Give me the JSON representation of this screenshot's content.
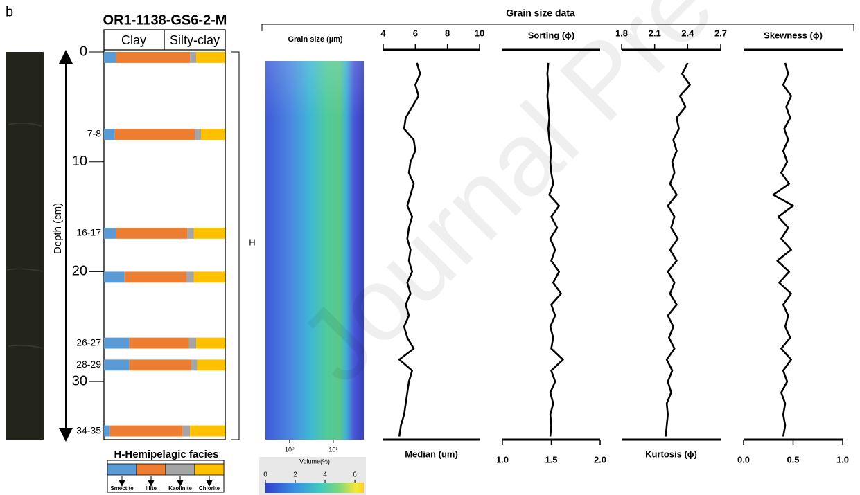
{
  "panel_label": "b",
  "watermark": "Journal Pre-proof",
  "core": {
    "title": "OR1-1138-GS6-2-M",
    "columns": [
      "Clay",
      "Silty-clay"
    ],
    "depth_label": "Depth (cm)",
    "ylim": [
      0,
      35
    ],
    "yticks": [
      0,
      10,
      20,
      30
    ],
    "facies_mark": "H",
    "minerals": [
      {
        "name": "Smectite",
        "color": "#5b9bd5"
      },
      {
        "name": "Illite",
        "color": "#ed7d31"
      },
      {
        "name": "Kaolinite",
        "color": "#a5a5a5"
      },
      {
        "name": "Chlorite",
        "color": "#ffc000"
      }
    ],
    "legend_title": "H-Hemipelagic facies",
    "samples": [
      {
        "label": null,
        "depth": [
          0,
          1
        ],
        "values": [
          10,
          61,
          5,
          24
        ]
      },
      {
        "label": "7-8",
        "depth": [
          7,
          8
        ],
        "values": [
          9,
          66,
          5,
          20
        ]
      },
      {
        "label": "16-17",
        "depth": [
          16,
          17
        ],
        "values": [
          10,
          59,
          5,
          26
        ]
      },
      {
        "label": null,
        "depth": [
          20,
          21
        ],
        "values": [
          17,
          51,
          6,
          26
        ]
      },
      {
        "label": "26-27",
        "depth": [
          26,
          27
        ],
        "values": [
          21,
          49,
          6,
          24
        ]
      },
      {
        "label": "28-29",
        "depth": [
          28,
          29
        ],
        "values": [
          21,
          51,
          5,
          23
        ]
      },
      {
        "label": "34-35",
        "depth": [
          34,
          35
        ],
        "values": [
          5,
          60,
          6,
          29
        ]
      }
    ]
  },
  "heatmap": {
    "title": "Grain size (µm)",
    "log_x": true,
    "xlim": [
      0.28,
      50
    ],
    "xticks": [
      {
        "value": 1,
        "label": "10⁰"
      },
      {
        "value": 10,
        "label": "10¹"
      }
    ],
    "colorbar_label": "Volume(%)",
    "colorbar_lim": [
      0,
      6.6
    ],
    "colorbar_ticks": [
      0,
      2,
      4,
      6
    ]
  },
  "profiles": {
    "title": "Grain size data",
    "depths": [
      1,
      2,
      3,
      4,
      5,
      6,
      7,
      8,
      9,
      10,
      11,
      12,
      13,
      14,
      15,
      16,
      17,
      18,
      19,
      20,
      21,
      22,
      23,
      24,
      25,
      26,
      27,
      28,
      29,
      30,
      31,
      32,
      33,
      34,
      35
    ],
    "panels": [
      {
        "name": "Median (um)",
        "axis_side": "top",
        "xlim": [
          4,
          10
        ],
        "xticks": [
          4,
          6,
          8,
          10
        ],
        "values": [
          6.1,
          6.3,
          6.0,
          6.2,
          5.8,
          5.4,
          5.3,
          5.9,
          6.0,
          5.7,
          5.6,
          5.9,
          5.7,
          5.5,
          5.8,
          5.6,
          5.5,
          5.7,
          5.6,
          5.8,
          5.5,
          5.7,
          5.4,
          5.6,
          5.3,
          5.5,
          5.9,
          5.0,
          5.8,
          5.6,
          5.5,
          5.4,
          5.3,
          5.1,
          5.0
        ]
      },
      {
        "name": "Sorting (ϕ)",
        "axis_side": "bottom",
        "xlim": [
          1,
          2
        ],
        "xticks": [
          {
            "value": 1,
            "label": "1.0"
          },
          1.5,
          {
            "value": 2,
            "label": "2.0"
          }
        ],
        "values": [
          1.47,
          1.46,
          1.47,
          1.46,
          1.47,
          1.48,
          1.47,
          1.48,
          1.5,
          1.49,
          1.5,
          1.52,
          1.48,
          1.58,
          1.5,
          1.56,
          1.49,
          1.54,
          1.5,
          1.58,
          1.52,
          1.6,
          1.5,
          1.54,
          1.49,
          1.52,
          1.5,
          1.62,
          1.5,
          1.54,
          1.49,
          1.52,
          1.49,
          1.5,
          1.49
        ]
      },
      {
        "name": "Kurtosis (ϕ)",
        "axis_side": "top",
        "xlim": [
          1.8,
          2.7
        ],
        "xticks": [
          1.8,
          2.1,
          2.4,
          2.7
        ],
        "values": [
          2.4,
          2.35,
          2.42,
          2.33,
          2.38,
          2.3,
          2.32,
          2.27,
          2.3,
          2.26,
          2.28,
          2.24,
          2.3,
          2.22,
          2.28,
          2.25,
          2.31,
          2.24,
          2.3,
          2.22,
          2.28,
          2.24,
          2.3,
          2.22,
          2.27,
          2.23,
          2.28,
          2.21,
          2.26,
          2.22,
          2.25,
          2.21,
          2.22,
          2.21,
          2.2
        ]
      },
      {
        "name": "Skewness (ϕ)",
        "axis_side": "bottom",
        "xlim": [
          0,
          1
        ],
        "xticks": [
          {
            "value": 0,
            "label": "0.0"
          },
          0.5,
          {
            "value": 1,
            "label": "1.0"
          }
        ],
        "values": [
          0.42,
          0.45,
          0.4,
          0.48,
          0.43,
          0.47,
          0.41,
          0.45,
          0.4,
          0.44,
          0.38,
          0.46,
          0.3,
          0.5,
          0.35,
          0.45,
          0.38,
          0.48,
          0.34,
          0.46,
          0.36,
          0.48,
          0.4,
          0.45,
          0.42,
          0.47,
          0.38,
          0.48,
          0.4,
          0.44,
          0.38,
          0.42,
          0.4,
          0.42,
          0.4
        ]
      }
    ]
  }
}
